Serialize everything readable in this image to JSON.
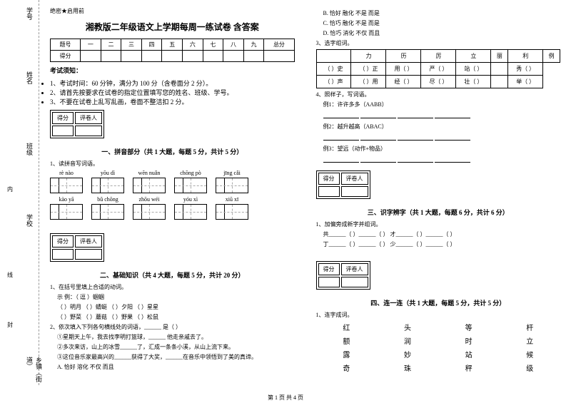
{
  "sidebar": {
    "l1": "学号",
    "l2": "姓名",
    "l3": "班级",
    "l4": "学校",
    "l5": "",
    "l6": "乡镇（街道）",
    "sep1": "密",
    "sep2": "封",
    "sep3": "线",
    "sep4": "内",
    "sep5": "不",
    "sep6": "答",
    "sep7": "题"
  },
  "secret": "绝密★启用前",
  "title": "湘教版二年级语文上学期每周一练试卷 含答案",
  "score": {
    "h": [
      "题号",
      "一",
      "二",
      "三",
      "四",
      "五",
      "六",
      "七",
      "八",
      "九",
      "总分"
    ],
    "r": "得分"
  },
  "notice": {
    "h": "考试须知：",
    "items": [
      "1、考试时间：60 分钟，满分为 100 分（含卷面分 2 分）。",
      "2、请首先按要求在试卷的指定位置填写您的姓名、班级、学号。",
      "3、不要在试卷上乱写乱画，卷面不整洁扣 2 分。"
    ]
  },
  "scorer": {
    "c1": "得分",
    "c2": "评卷人"
  },
  "s1": {
    "title": "一、拼音部分（共 1 大题，每题 5 分，共计 5 分）",
    "q1": "1、读拼音写词语。",
    "row1": [
      "rè   nào",
      "yōu  dì",
      "wēn  nuǎn",
      "chōng  pò",
      "jīng   cǎi"
    ],
    "row2": [
      "kào   yā",
      "bǔ  chōng",
      "zhōu  wéi",
      "yóu  xì",
      "xiū   xī"
    ]
  },
  "s2": {
    "title": "二、基础知识（共 4 大题，每题 5 分，共计 20 分）",
    "q1": "1、在括号里填上合适的动词。",
    "ex": "示 例：（ 逗 ）蝈蝈",
    "r1a": "（   ）明月    （   ）蜻蜓    （   ）夕阳    （   ）星星",
    "r1b": "（   ）野菜    （   ）蘑菇    （   ）野果    （   ）松鼠",
    "q2": "2、依次填入下列各句横线处的词语，______ 是（   ）",
    "l1": "①星期天上午，我去找李明打篮球，______ 他走亲戚去了。",
    "l2": "②多次来访，山上的冰雪______了，汇成一条条小溪，从山上流下来。",
    "l3": "③这位音乐家最高兴的______获得了大奖，______在音乐中领悟到了美的真谛。",
    "optA": "A. 恰好       溶化       不仅 而且",
    "optB": "B. 恰好       融化       不是 而是",
    "optC": "C. 恰巧       融化       不是 而是",
    "optD": "D. 恰巧       消化       不仅 而且",
    "q3": "3、选字组词。",
    "zihead": [
      "",
      "力",
      "历",
      "厉",
      "立",
      "丽",
      "利",
      "例"
    ],
    "zr1": [
      "（   ）史",
      "（   ）正",
      "用（   ）",
      "严（   ）",
      "站（   ）",
      "",
      "秀（   ）"
    ],
    "zr2": [
      "（   ）声",
      "（   ）用",
      "经（   ）",
      "尽（   ）",
      "壮（   ）",
      "",
      "举（   ）"
    ],
    "q4": "4、照样子，写词语。",
    "e1": "例1：许许多多（AABB）",
    "e2": "例2：越升越高（ABAC）",
    "e3": "例3：望远（动作+物品）"
  },
  "s3": {
    "title": "三、识字辨字（共 1 大题，每题 6 分，共计 6 分）",
    "q1": "1、加偏旁成新字并组词。",
    "l1": "共______（      ）______（      ）  才______（      ）______（      ）",
    "l2": "丁______（      ）______（      ）  少______（      ）______（      ）"
  },
  "s4": {
    "title": "四、连一连（共 1 大题，每题 5 分，共计 5 分）",
    "q1": "1、连字成词。",
    "rows": [
      [
        "红",
        "头",
        "等",
        "杆"
      ],
      [
        "额",
        "润",
        "时",
        "立"
      ],
      [
        "露",
        "妙",
        "站",
        "候"
      ],
      [
        "奇",
        "珠",
        "秤",
        "级"
      ]
    ]
  },
  "footer": "第 1 页 共 4 页"
}
